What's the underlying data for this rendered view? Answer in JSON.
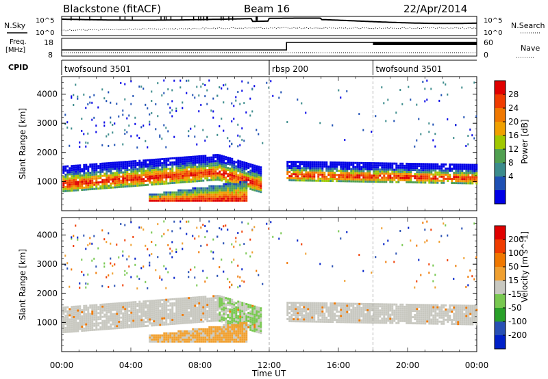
{
  "header": {
    "title": "Blackstone (fitACF)",
    "beam": "Beam 16",
    "date": "22/Apr/2014"
  },
  "noise_panel": {
    "left_label": "N.Sky",
    "right_label": "N.Search",
    "y_ticks_left": [
      "10^5",
      "10^0"
    ],
    "y_ticks_right": [
      "10^5",
      "10^0"
    ]
  },
  "freq_panel": {
    "left_label_line1": "Freq.",
    "left_label_line2": "[MHz]",
    "left_ticks": [
      "18",
      "8"
    ],
    "right_ticks": [
      "60",
      "0"
    ],
    "right_label": "Nave"
  },
  "cpid_panel": {
    "label": "CPID",
    "segments": [
      {
        "name": "twofsound 3501",
        "start_hour": 0
      },
      {
        "name": "rbsp 200",
        "start_hour": 12
      },
      {
        "name": "twofsound 3501",
        "start_hour": 18
      }
    ]
  },
  "x_axis": {
    "label": "Time UT",
    "ticks": [
      "00:00",
      "04:00",
      "08:00",
      "12:00",
      "16:00",
      "20:00",
      "00:00"
    ]
  },
  "chart_data": [
    {
      "type": "heatmap",
      "title": "",
      "xlabel": "Time UT",
      "ylabel": "Slant Range [km]",
      "xlim": [
        0,
        24
      ],
      "ylim": [
        0,
        4600
      ],
      "y_ticks": [
        1000,
        2000,
        3000,
        4000
      ],
      "colorbar": {
        "label": "Power [dB]",
        "ticks": [
          "28",
          "24",
          "20",
          "16",
          "12",
          "8",
          "4"
        ],
        "colors": [
          "#0000e6",
          "#1e50b4",
          "#3c8c8c",
          "#50a050",
          "#a0c800",
          "#f0a000",
          "#f07800",
          "#f03c00",
          "#e00000"
        ]
      },
      "features": [
        {
          "name": "main echo band",
          "hours": [
            0,
            11.5
          ],
          "range_km": [
            900,
            2200
          ]
        },
        {
          "name": "lower echo band",
          "hours": [
            5,
            10.7
          ],
          "range_km": [
            300,
            1200
          ]
        },
        {
          "name": "post-12UT band",
          "hours": [
            13,
            24
          ],
          "range_km": [
            1000,
            1800
          ]
        }
      ]
    },
    {
      "type": "heatmap",
      "title": "",
      "xlabel": "Time UT",
      "ylabel": "Slant Range [km]",
      "xlim": [
        0,
        24
      ],
      "ylim": [
        0,
        4600
      ],
      "y_ticks": [
        1000,
        2000,
        3000,
        4000
      ],
      "colorbar": {
        "label": "Velocity [m s^-1]",
        "ticks": [
          "200",
          "100",
          "50",
          "15",
          "-15",
          "-50",
          "-100",
          "-200"
        ],
        "colors": [
          "#0020c8",
          "#2850b4",
          "#28a028",
          "#78c850",
          "#c8c8c0",
          "#f0a030",
          "#f07800",
          "#f03c00",
          "#e00000"
        ]
      }
    }
  ]
}
